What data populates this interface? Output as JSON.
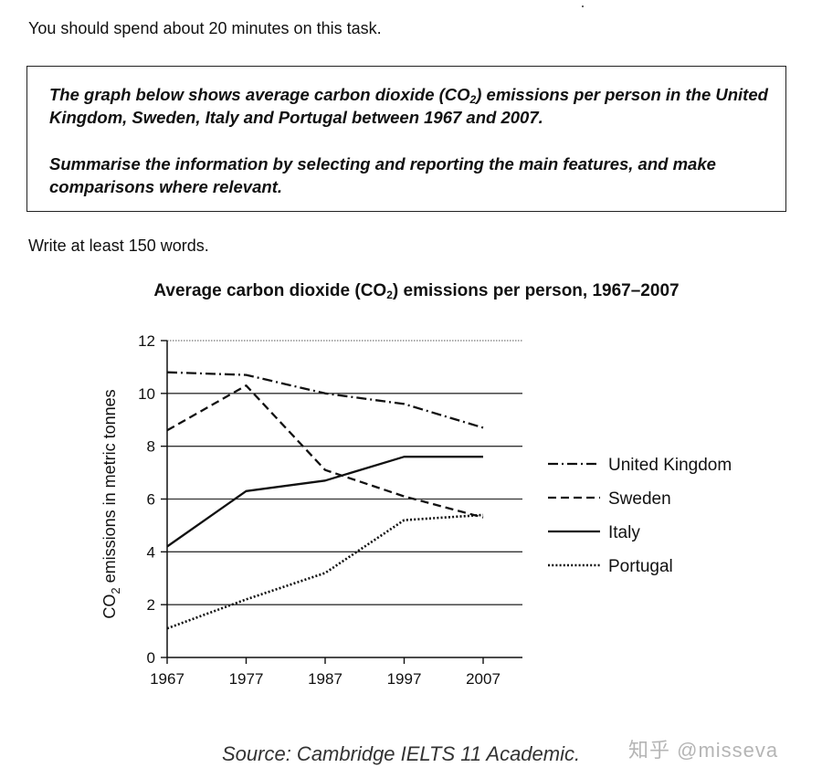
{
  "instructions": {
    "time": "You should spend about 20 minutes on this task.",
    "task_line1_pre": "The graph below shows average carbon dioxide (CO",
    "task_line1_sub": "2",
    "task_line1_post": ") emissions per person in the United Kingdom, Sweden, Italy and Portugal between 1967 and 2007.",
    "task_line2": "Summarise the information by selecting and reporting the main features, and make comparisons where relevant.",
    "word_count": "Write at least 150 words."
  },
  "chart_title": {
    "pre": "Average carbon dioxide (CO",
    "sub": "2",
    "post": ") emissions per person, 1967–2007"
  },
  "chart_data": {
    "type": "line",
    "title": "Average carbon dioxide (CO2) emissions per person, 1967–2007",
    "xlabel": "",
    "ylabel": "CO2 emissions in metric tonnes",
    "ylabel_parts": {
      "pre": "CO",
      "sub": "2",
      "post": " emissions in metric tonnes"
    },
    "x": [
      1967,
      1977,
      1987,
      1997,
      2007
    ],
    "xticks": [
      "1967",
      "1977",
      "1987",
      "1997",
      "2007"
    ],
    "yticks": [
      0,
      2,
      4,
      6,
      8,
      10,
      12
    ],
    "ylim": [
      0,
      12
    ],
    "grid": true,
    "legend_position": "right",
    "series": [
      {
        "name": "United Kingdom",
        "style": "dashdot",
        "values": [
          10.8,
          10.7,
          10.0,
          9.6,
          8.7
        ]
      },
      {
        "name": "Sweden",
        "style": "dashed",
        "values": [
          8.6,
          10.3,
          7.1,
          6.1,
          5.3
        ]
      },
      {
        "name": "Italy",
        "style": "solid",
        "values": [
          4.2,
          6.3,
          6.7,
          7.6,
          7.6
        ]
      },
      {
        "name": "Portugal",
        "style": "dotted",
        "values": [
          1.1,
          2.2,
          3.2,
          5.2,
          5.4
        ]
      }
    ]
  },
  "source": "Source: Cambridge IELTS 11 Academic.",
  "watermark": "知乎 @misseva"
}
